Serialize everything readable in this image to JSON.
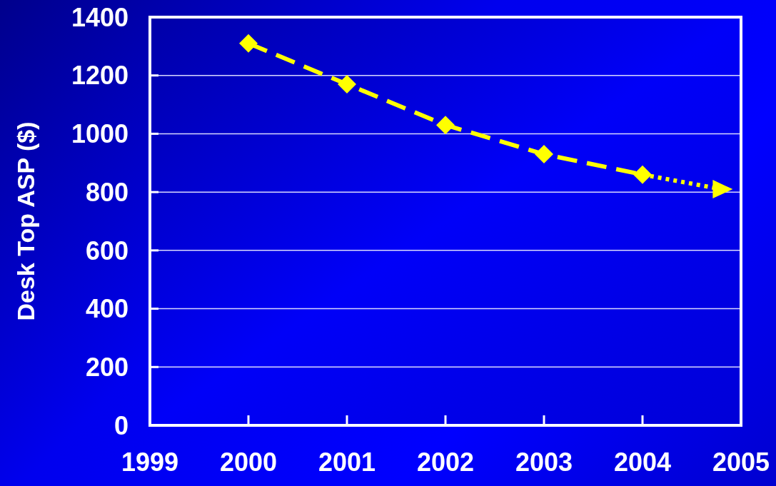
{
  "chart_data": {
    "type": "line",
    "ylabel": "Desk Top ASP ($)",
    "xlim": [
      1999,
      2005
    ],
    "xticks": [
      1999,
      2000,
      2001,
      2002,
      2003,
      2004,
      2005
    ],
    "ylim": [
      0,
      1400
    ],
    "yticks": [
      0,
      200,
      400,
      600,
      800,
      1000,
      1200,
      1400
    ],
    "grid": "y",
    "series": [
      {
        "color": "#ffff00",
        "x": [
          2000,
          2001,
          2002,
          2003,
          2004
        ],
        "values": [
          1310,
          1170,
          1030,
          930,
          860
        ],
        "line_style": "dashed",
        "marker": "diamond"
      },
      {
        "color": "#ffff00",
        "x": [
          2004,
          2004.8
        ],
        "values": [
          860,
          810
        ],
        "line_style": "dotted",
        "marker": "triangle"
      }
    ]
  }
}
